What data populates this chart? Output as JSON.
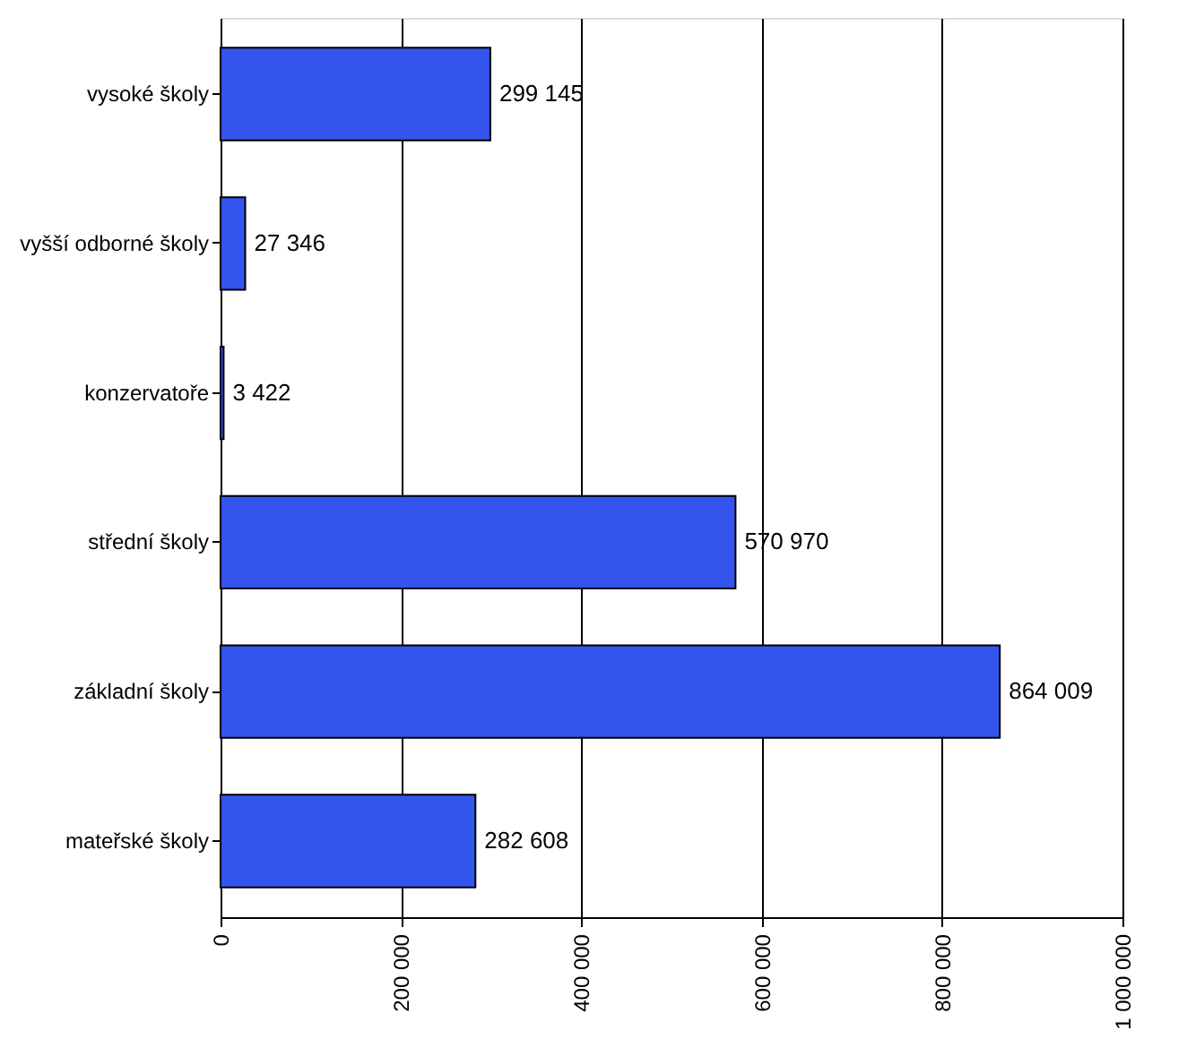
{
  "chart_data": {
    "type": "bar",
    "orientation": "horizontal",
    "categories": [
      "vysoké školy",
      "vyšší odborné školy",
      "konzervatoře",
      "střední školy",
      "základní školy",
      "mateřské školy"
    ],
    "values": [
      299145,
      27346,
      3422,
      570970,
      864009,
      282608
    ],
    "value_labels": [
      "299 145",
      "27 346",
      "3 422",
      "570 970",
      "864 009",
      "282 608"
    ],
    "color": "#3355ee",
    "xlim": [
      0,
      1000000
    ],
    "xticks": [
      0,
      {
        "value": 200000,
        "label": "200 000"
      },
      {
        "value": 400000,
        "label": "400 000"
      },
      {
        "value": 600000,
        "label": "600 000"
      },
      {
        "value": 800000,
        "label": "800 000"
      },
      {
        "value": 1000000,
        "label": "1 000 000"
      }
    ],
    "grid": "x"
  }
}
